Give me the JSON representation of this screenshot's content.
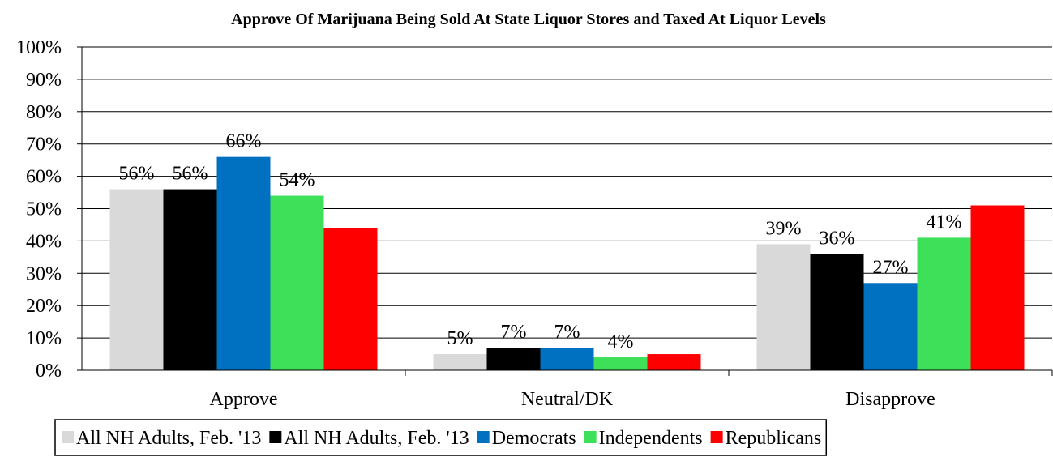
{
  "chart_data": {
    "type": "bar",
    "title": "Approve Of Marijuana Being Sold At State Liquor Stores and Taxed At Liquor Levels",
    "xlabel": "",
    "ylabel": "",
    "ylim": [
      0,
      100
    ],
    "y_tick_suffix": "%",
    "y_ticks": [
      "0%",
      "10%",
      "20%",
      "30%",
      "40%",
      "50%",
      "60%",
      "70%",
      "80%",
      "90%",
      "100%"
    ],
    "categories": [
      "Approve",
      "Neutral/DK",
      "Disapprove"
    ],
    "grid": "horizontal",
    "legend_position": "bottom",
    "series": [
      {
        "name": "All NH Adults, Feb. '13",
        "color": "#d9d9d9",
        "values": [
          56,
          5,
          39
        ],
        "labels": [
          "56%",
          "5%",
          "39%"
        ]
      },
      {
        "name": "All NH Adults, Feb. '13",
        "color": "#000000",
        "values": [
          56,
          7,
          36
        ],
        "labels": [
          "56%",
          "7%",
          "36%"
        ]
      },
      {
        "name": "Democrats",
        "color": "#0070c0",
        "values": [
          66,
          7,
          27
        ],
        "labels": [
          "66%",
          "7%",
          "27%"
        ]
      },
      {
        "name": "Independents",
        "color": "#3ee05a",
        "values": [
          54,
          4,
          41
        ],
        "labels": [
          "54%",
          "4%",
          "41%"
        ]
      },
      {
        "name": "Republicans",
        "color": "#ff0000",
        "values": [
          44,
          5,
          51
        ],
        "labels": [
          "",
          "",
          ""
        ]
      }
    ]
  }
}
